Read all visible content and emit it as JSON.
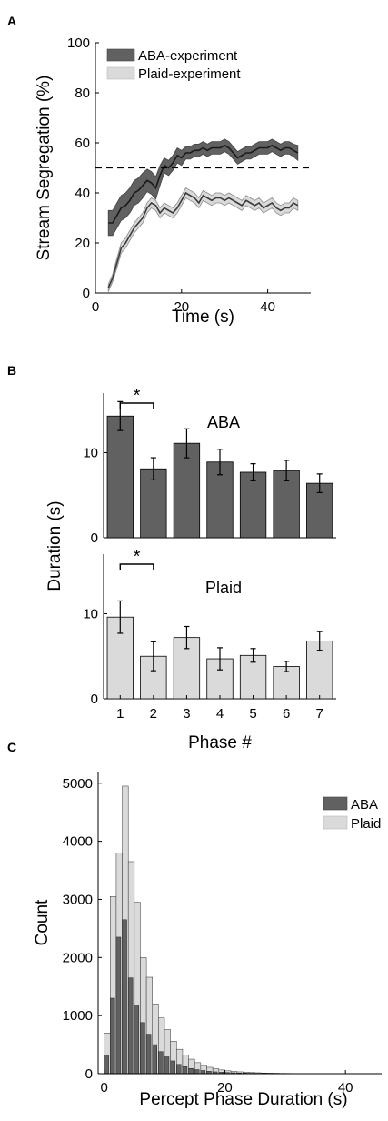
{
  "colors": {
    "aba": "#616161",
    "plaid": "#dadada",
    "aba_line": "#1a1a1a",
    "plaid_line": "#3a3a3a",
    "axis": "#000000"
  },
  "panel_labels": [
    "A",
    "B",
    "C"
  ],
  "chart_data": [
    {
      "panel": "A",
      "type": "line",
      "xlabel": "Time (s)",
      "ylabel": "Stream Segregation (%)",
      "xlim": [
        0,
        50
      ],
      "ylim": [
        0,
        100
      ],
      "xticks": [
        0,
        20,
        40
      ],
      "yticks": [
        0,
        20,
        40,
        60,
        80,
        100
      ],
      "reference_line": {
        "y": 50,
        "style": "dashed"
      },
      "legend": {
        "placement": "top-left",
        "entries": [
          "ABA-experiment",
          "Plaid-experiment"
        ]
      },
      "series": [
        {
          "name": "ABA-experiment",
          "x": [
            3,
            4,
            5,
            6,
            7,
            8,
            9,
            10,
            11,
            12,
            13,
            14,
            15,
            16,
            17,
            18,
            19,
            20,
            21,
            22,
            23,
            24,
            25,
            26,
            27,
            28,
            29,
            30,
            31,
            32,
            33,
            34,
            35,
            36,
            37,
            38,
            39,
            40,
            41,
            42,
            43,
            44,
            45,
            46,
            47
          ],
          "y": [
            28,
            28,
            31,
            34,
            35,
            37,
            40,
            41,
            43,
            45,
            44,
            42,
            47,
            51,
            50,
            52,
            55,
            54,
            56,
            56,
            57,
            57,
            58,
            57,
            58,
            58,
            58,
            59,
            58,
            56,
            54,
            55,
            56,
            56,
            57,
            58,
            58,
            58,
            59,
            58,
            57,
            58,
            58,
            57,
            56
          ],
          "err": [
            5,
            5,
            5,
            5,
            5,
            5,
            5,
            5,
            5,
            4.5,
            4.5,
            4.5,
            4,
            3,
            3,
            3,
            3,
            3,
            2.5,
            2.5,
            2.5,
            2.5,
            2.5,
            2.5,
            2.5,
            2.5,
            2.5,
            2.5,
            2.5,
            2.5,
            2.5,
            2.5,
            2.5,
            2.5,
            2.5,
            2.5,
            2.5,
            2.5,
            2.5,
            2.5,
            2.5,
            2.5,
            2.5,
            2.5,
            3
          ]
        },
        {
          "name": "Plaid-experiment",
          "x": [
            3,
            4,
            5,
            6,
            7,
            8,
            9,
            10,
            11,
            12,
            13,
            14,
            15,
            16,
            17,
            18,
            19,
            20,
            21,
            22,
            23,
            24,
            25,
            26,
            27,
            28,
            29,
            30,
            31,
            32,
            33,
            34,
            35,
            36,
            37,
            38,
            39,
            40,
            41,
            42,
            43,
            44,
            45,
            46,
            47
          ],
          "y": [
            2,
            6,
            12,
            18,
            20,
            23,
            26,
            28,
            30,
            34,
            36,
            35,
            32,
            34,
            33,
            32,
            34,
            37,
            40,
            39,
            38,
            36,
            39,
            38,
            37,
            38,
            38,
            37,
            38,
            37,
            36,
            35,
            37,
            36,
            35,
            36,
            34,
            35,
            36,
            34,
            33,
            34,
            34,
            36,
            35
          ],
          "err": [
            1.5,
            1.5,
            2,
            2,
            2,
            2,
            2,
            2,
            2,
            2,
            2,
            2,
            2,
            2,
            2,
            2,
            2,
            2,
            2,
            2,
            2,
            2,
            2,
            2,
            2,
            2,
            2,
            2,
            2,
            2,
            2,
            2,
            2,
            2,
            2,
            2,
            2,
            2,
            2,
            2,
            2,
            2,
            2,
            2,
            2
          ]
        }
      ]
    },
    {
      "panel": "B",
      "type": "bar",
      "title": "ABA",
      "categories": [
        "1",
        "2",
        "3",
        "4",
        "5",
        "6",
        "7"
      ],
      "values": [
        14.3,
        8.1,
        11.1,
        8.9,
        7.7,
        7.9,
        6.4
      ],
      "err": [
        1.7,
        1.3,
        1.7,
        1.5,
        1.0,
        1.2,
        1.1
      ],
      "ylim": [
        0,
        17
      ],
      "yticks": [
        0,
        10
      ],
      "ylabel": "Duration (s)",
      "significance": {
        "between": [
          "1",
          "2"
        ],
        "label": "*"
      }
    },
    {
      "panel": "B",
      "type": "bar",
      "title": "Plaid",
      "categories": [
        "1",
        "2",
        "3",
        "4",
        "5",
        "6",
        "7"
      ],
      "values": [
        9.6,
        5.0,
        7.2,
        4.7,
        5.1,
        3.8,
        6.8
      ],
      "err": [
        1.9,
        1.7,
        1.3,
        1.3,
        0.8,
        0.6,
        1.1
      ],
      "ylim": [
        0,
        17
      ],
      "yticks": [
        0,
        10
      ],
      "xlabel": "Phase #",
      "significance": {
        "between": [
          "1",
          "2"
        ],
        "label": "*"
      }
    },
    {
      "panel": "C",
      "type": "bar",
      "xlabel": "Percept Phase Duration (s)",
      "ylabel": "Count",
      "xlim": [
        0,
        47
      ],
      "ylim": [
        0,
        5200
      ],
      "xticks": [
        0,
        20,
        40
      ],
      "yticks": [
        0,
        1000,
        2000,
        3000,
        4000,
        5000
      ],
      "bin_width": 1,
      "legend": {
        "placement": "top-right",
        "entries": [
          "ABA",
          "Plaid"
        ]
      },
      "bin_start": [
        1,
        2,
        3,
        4,
        5,
        6,
        7,
        8,
        9,
        10,
        11,
        12,
        13,
        14,
        15,
        16,
        17,
        18,
        19,
        20,
        21,
        22,
        23,
        24,
        25,
        26,
        27,
        28,
        29,
        30,
        31,
        32,
        33,
        34,
        35,
        36,
        37,
        38,
        39,
        40,
        41,
        42,
        43,
        44,
        45,
        46
      ],
      "series": [
        {
          "name": "ABA",
          "values": [
            320,
            1300,
            2350,
            2650,
            1650,
            1180,
            880,
            680,
            500,
            380,
            290,
            220,
            160,
            120,
            90,
            70,
            55,
            42,
            32,
            25,
            20,
            16,
            12,
            10,
            8,
            6,
            5,
            4,
            3,
            3,
            2,
            2,
            2,
            1,
            1,
            1,
            1,
            1,
            1,
            1,
            0,
            0,
            0,
            0,
            0,
            0
          ]
        },
        {
          "name": "Plaid",
          "values": [
            700,
            3050,
            3800,
            4950,
            3650,
            2950,
            2000,
            1660,
            1200,
            960,
            760,
            560,
            420,
            320,
            250,
            190,
            140,
            110,
            85,
            65,
            50,
            40,
            32,
            25,
            20,
            16,
            12,
            10,
            8,
            6,
            5,
            4,
            3,
            3,
            2,
            2,
            2,
            1,
            1,
            1,
            1,
            1,
            1,
            0,
            0,
            0
          ]
        }
      ]
    }
  ]
}
